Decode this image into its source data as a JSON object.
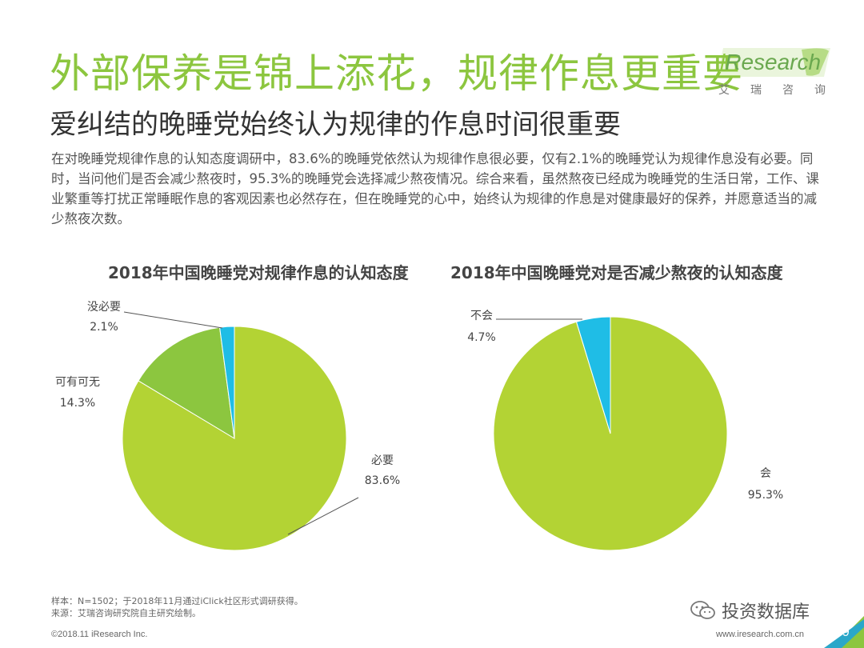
{
  "header": {
    "title": "外部保养是锦上添花，规律作息更重要",
    "subtitle": "爱纠结的晚睡党始终认为规律的作息时间很重要",
    "description": "在对晚睡党规律作息的认知态度调研中，83.6%的晚睡党依然认为规律作息很必要，仅有2.1%的晚睡党认为规律作息没有必要。同时，当问他们是否会减少熬夜时，95.3%的晚睡党会选择减少熬夜情况。综合来看，虽然熬夜已经成为晚睡党的生活日常，工作、课业繁重等打扰正常睡眠作息的客观因素也必然存在，但在晚睡党的心中，始终认为规律的作息是对健康最好的保养，并愿意适当的减少熬夜次数。"
  },
  "logo": {
    "word_prefix": "i",
    "word_rest": "Research",
    "cn": [
      "艾",
      "瑞",
      "咨",
      "询"
    ],
    "icon": "iresearch-logo-icon"
  },
  "chart_data": [
    {
      "type": "pie",
      "title": "2018年中国晚睡党对规律作息的认知态度",
      "slices": [
        {
          "label": "必要",
          "value": 83.6,
          "display": "83.6%",
          "color": "#b3d334"
        },
        {
          "label": "可有可无",
          "value": 14.3,
          "display": "14.3%",
          "color": "#8cc63f"
        },
        {
          "label": "没必要",
          "value": 2.1,
          "display": "2.1%",
          "color": "#1fbde6"
        }
      ]
    },
    {
      "type": "pie",
      "title": "2018年中国晚睡党对是否减少熬夜的认知态度",
      "slices": [
        {
          "label": "会",
          "value": 95.3,
          "display": "95.3%",
          "color": "#b3d334"
        },
        {
          "label": "不会",
          "value": 4.7,
          "display": "4.7%",
          "color": "#1fbde6"
        }
      ]
    }
  ],
  "footer": {
    "sample": "样本：N=1502；于2018年11月通过iClick社区形式调研获得。",
    "source": "来源：艾瑞咨询研究院自主研究绘制。",
    "copyright": "©2018.11 iResearch Inc.",
    "website": "www.iresearch.com.cn",
    "watermark": "投资数据库",
    "watermark_icon": "wechat-icon",
    "page_number": "39"
  }
}
